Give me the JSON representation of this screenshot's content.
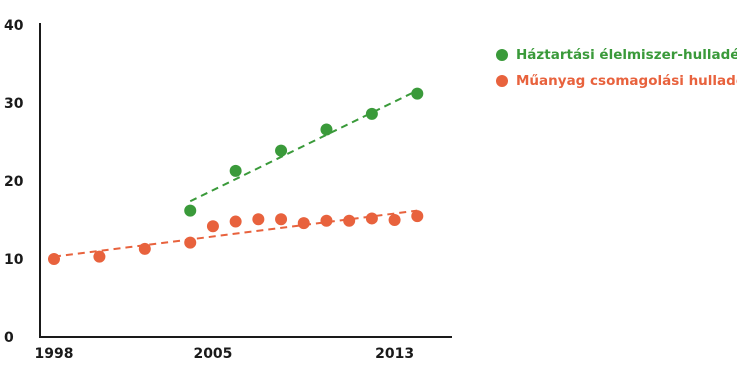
{
  "chart_data": {
    "type": "scatter",
    "title": "",
    "xlabel": "",
    "ylabel": "",
    "xlim": [
      1998,
      2015
    ],
    "ylim": [
      0,
      40
    ],
    "grid": false,
    "legend_position": "top-right",
    "x_ticks": [
      "1998",
      "2005",
      "2013"
    ],
    "y_ticks": [
      "0",
      "10",
      "20",
      "30",
      "40"
    ],
    "series": [
      {
        "name": "Háztartási élelmiszer-hulladék",
        "color": "#3a9a3a",
        "points": [
          {
            "x": 2004,
            "y": 16.2
          },
          {
            "x": 2006,
            "y": 21.3
          },
          {
            "x": 2008,
            "y": 23.9
          },
          {
            "x": 2010,
            "y": 26.6
          },
          {
            "x": 2012,
            "y": 28.6
          },
          {
            "x": 2014,
            "y": 31.2
          }
        ],
        "trend": {
          "from": [
            2004,
            17.4
          ],
          "to": [
            2014,
            31.6
          ]
        }
      },
      {
        "name": "Műanyag csomagolási hulladék",
        "color": "#e8623d",
        "points": [
          {
            "x": 1998,
            "y": 10.0
          },
          {
            "x": 2000,
            "y": 10.3
          },
          {
            "x": 2002,
            "y": 11.3
          },
          {
            "x": 2004,
            "y": 12.1
          },
          {
            "x": 2005,
            "y": 14.2
          },
          {
            "x": 2006,
            "y": 14.8
          },
          {
            "x": 2007,
            "y": 15.1
          },
          {
            "x": 2008,
            "y": 15.1
          },
          {
            "x": 2009,
            "y": 14.6
          },
          {
            "x": 2010,
            "y": 14.9
          },
          {
            "x": 2011,
            "y": 14.9
          },
          {
            "x": 2012,
            "y": 15.2
          },
          {
            "x": 2013,
            "y": 15.0
          },
          {
            "x": 2014,
            "y": 15.5
          }
        ],
        "trend": {
          "from": [
            1998,
            10.3
          ],
          "to": [
            2014,
            16.2
          ]
        }
      }
    ]
  }
}
